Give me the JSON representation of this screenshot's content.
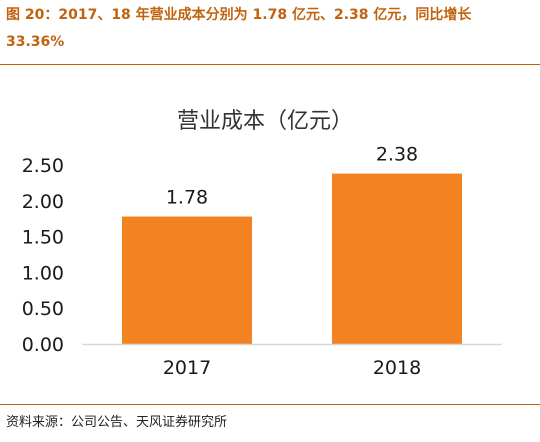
{
  "figure": {
    "caption": "图 20：2017、18 年营业成本分别为 1.78 亿元、2.38 亿元，同比增长 33.36%",
    "source": "资料来源：公司公告、天风证券研究所"
  },
  "colors": {
    "bar": "#f38320",
    "caption": "#c0620e",
    "axis": "#d9d9d9",
    "text": "#1a1a1a"
  },
  "chart_data": {
    "type": "bar",
    "title": "营业成本（亿元）",
    "categories": [
      "2017",
      "2018"
    ],
    "values": [
      1.78,
      2.38
    ],
    "data_labels": [
      "1.78",
      "2.38"
    ],
    "ylim": [
      0,
      2.5
    ],
    "yticks": [
      0,
      0.5,
      1.0,
      1.5,
      2.0,
      2.5
    ],
    "ytick_labels": [
      "0.00",
      "0.50",
      "1.00",
      "1.50",
      "2.00",
      "2.50"
    ],
    "xlabel": "",
    "ylabel": "",
    "grid": false,
    "legend": "none"
  }
}
